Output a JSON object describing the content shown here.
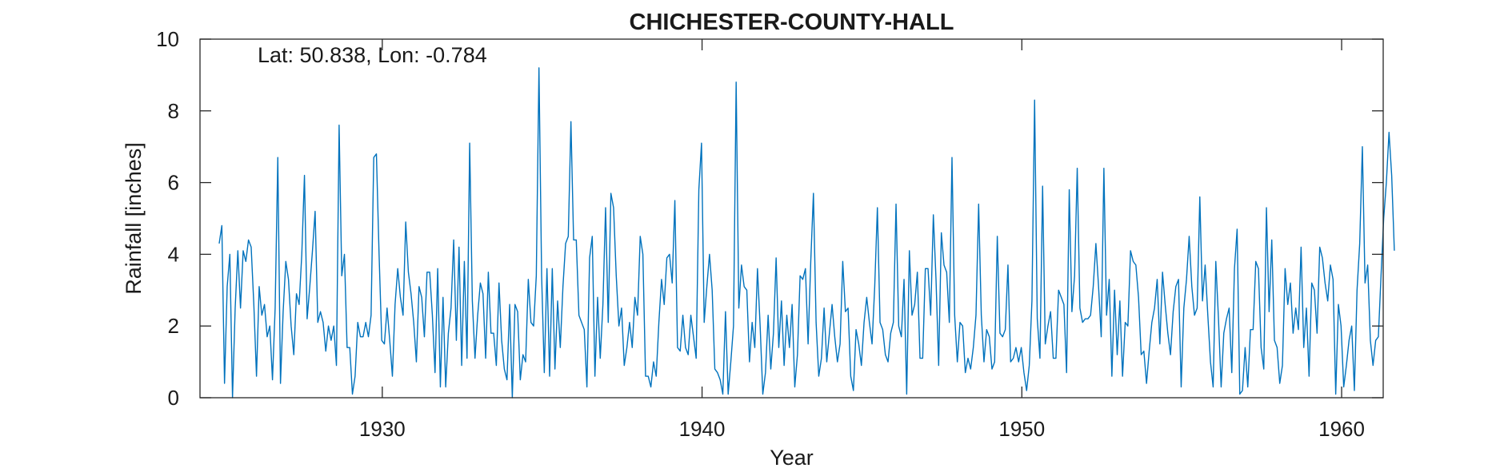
{
  "chart_data": {
    "type": "line",
    "title": "CHICHESTER-COUNTY-HALL",
    "xlabel": "Year",
    "ylabel": "Rainfall [inches]",
    "annotation": "Lat: 50.838, Lon: -0.784",
    "xlim": [
      1924.3,
      1961.3
    ],
    "ylim": [
      0,
      10
    ],
    "xticks": [
      1930,
      1940,
      1950,
      1960
    ],
    "yticks": [
      0,
      2,
      4,
      6,
      8,
      10
    ],
    "grid": false,
    "line_color": "#0072BD",
    "series": [
      {
        "x_start": 1924.9,
        "step": 0.08333,
        "values": [
          4.3,
          4.8,
          0.4,
          3.1,
          4.0,
          0.0,
          2.5,
          4.1,
          2.5,
          4.1,
          3.8,
          4.4,
          4.2,
          2.6,
          0.6,
          3.1,
          2.3,
          2.6,
          1.7,
          2.0,
          0.5,
          2.5,
          6.7,
          0.4,
          2.4,
          3.8,
          3.3,
          2.0,
          1.2,
          2.9,
          2.6,
          4.0,
          6.2,
          2.2,
          3.1,
          4.1,
          5.2,
          2.1,
          2.4,
          2.1,
          1.3,
          2.0,
          1.6,
          2.0,
          0.9,
          7.6,
          3.4,
          4.0,
          1.4,
          1.4,
          0.1,
          0.6,
          2.1,
          1.7,
          1.7,
          2.1,
          1.7,
          2.3,
          6.7,
          6.8,
          4.0,
          1.6,
          1.5,
          2.5,
          1.6,
          0.6,
          2.6,
          3.6,
          2.8,
          2.3,
          4.9,
          3.5,
          2.9,
          2.1,
          1.0,
          3.1,
          2.8,
          1.7,
          3.5,
          3.5,
          2.3,
          0.7,
          3.6,
          0.3,
          2.8,
          0.3,
          1.8,
          2.5,
          4.4,
          1.6,
          4.2,
          0.9,
          3.8,
          1.1,
          7.1,
          2.7,
          1.1,
          2.3,
          3.2,
          2.9,
          1.1,
          3.5,
          1.8,
          1.8,
          0.9,
          3.2,
          1.6,
          0.8,
          0.5,
          2.6,
          0.0,
          2.6,
          2.4,
          0.5,
          1.2,
          1.0,
          3.3,
          2.1,
          2.0,
          3.4,
          9.2,
          3.4,
          0.7,
          3.6,
          0.6,
          3.6,
          0.8,
          2.7,
          1.4,
          3.1,
          4.3,
          4.5,
          7.7,
          4.4,
          4.4,
          2.3,
          2.1,
          1.9,
          0.3,
          3.9,
          4.5,
          0.6,
          2.8,
          1.1,
          2.6,
          5.3,
          2.1,
          5.7,
          5.3,
          3.4,
          2.0,
          2.5,
          0.9,
          1.4,
          2.1,
          1.4,
          2.8,
          2.3,
          4.5,
          4.0,
          0.6,
          0.6,
          0.3,
          1.0,
          0.6,
          2.1,
          3.3,
          2.6,
          3.9,
          4.0,
          3.2,
          5.5,
          1.4,
          1.3,
          2.3,
          1.4,
          1.2,
          2.3,
          1.7,
          1.1,
          5.8,
          7.1,
          2.1,
          3.1,
          4.0,
          3.0,
          0.8,
          0.7,
          0.5,
          0.1,
          2.4,
          0.1,
          1.0,
          2.0,
          8.8,
          2.5,
          3.7,
          3.1,
          3.0,
          1.0,
          2.1,
          1.4,
          3.6,
          2.0,
          0.1,
          0.7,
          2.3,
          0.8,
          1.8,
          3.9,
          1.4,
          2.7,
          0.9,
          2.3,
          1.4,
          2.6,
          0.3,
          1.2,
          3.4,
          3.3,
          3.6,
          1.5,
          3.8,
          5.7,
          2.1,
          0.6,
          1.1,
          2.5,
          1.0,
          1.8,
          2.6,
          1.7,
          1.0,
          1.5,
          3.8,
          2.4,
          2.5,
          0.6,
          0.2,
          1.9,
          1.5,
          0.9,
          2.1,
          2.8,
          2.1,
          1.5,
          3.1,
          5.3,
          2.1,
          1.9,
          1.2,
          1.0,
          1.8,
          2.1,
          5.4,
          2.0,
          1.7,
          3.3,
          0.1,
          4.1,
          2.3,
          2.6,
          3.5,
          1.1,
          1.1,
          3.6,
          3.6,
          2.3,
          5.1,
          3.3,
          0.9,
          4.6,
          3.7,
          3.5,
          2.1,
          6.7,
          2.3,
          1.0,
          2.1,
          2.0,
          0.7,
          1.1,
          0.8,
          1.4,
          2.3,
          5.4,
          2.3,
          1.0,
          1.9,
          1.7,
          0.8,
          1.0,
          4.5,
          1.8,
          1.7,
          1.9,
          3.7,
          1.0,
          1.1,
          1.4,
          1.0,
          1.4,
          0.7,
          0.2,
          0.9,
          2.7,
          8.3,
          2.2,
          1.1,
          5.9,
          1.5,
          2.0,
          2.4,
          1.1,
          1.1,
          3.0,
          2.8,
          2.6,
          0.7,
          5.8,
          2.4,
          3.4,
          6.4,
          2.5,
          2.1,
          2.2,
          2.2,
          2.3,
          3.1,
          4.3,
          3.1,
          1.7,
          6.4,
          2.3,
          3.3,
          0.6,
          3.0,
          1.2,
          2.7,
          0.6,
          2.1,
          2.0,
          4.1,
          3.8,
          3.7,
          2.8,
          1.2,
          1.3,
          0.4,
          1.3,
          2.1,
          2.5,
          3.3,
          1.5,
          3.5,
          2.6,
          1.8,
          1.2,
          2.4,
          3.1,
          3.3,
          0.3,
          2.5,
          3.3,
          4.5,
          3.1,
          2.3,
          2.5,
          5.6,
          2.7,
          3.7,
          2.3,
          1.0,
          0.3,
          3.8,
          2.2,
          0.3,
          1.8,
          2.2,
          2.5,
          0.7,
          3.6,
          4.7,
          0.1,
          0.2,
          1.4,
          0.3,
          1.9,
          1.9,
          3.8,
          3.6,
          1.4,
          0.8,
          5.3,
          2.4,
          4.4,
          1.6,
          1.4,
          0.4,
          0.9,
          3.6,
          2.6,
          3.2,
          1.8,
          2.5,
          1.9,
          4.2,
          1.4,
          2.5,
          0.6,
          3.2,
          3.0,
          1.8,
          4.2,
          3.9,
          3.2,
          2.7,
          3.7,
          3.3,
          0.1,
          2.6,
          2.0,
          0.3,
          0.9,
          1.6,
          2.0,
          0.2,
          3.0,
          4.3,
          7.0,
          3.2,
          3.7,
          1.6,
          0.9,
          1.6,
          1.7,
          3.4,
          5.0,
          6.0,
          7.4,
          6.2,
          4.1
        ]
      }
    ]
  }
}
